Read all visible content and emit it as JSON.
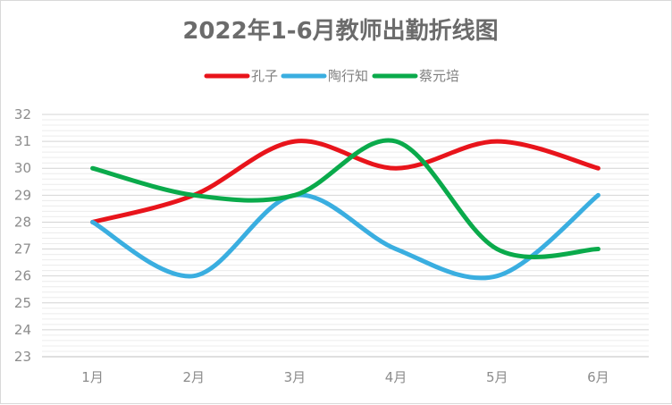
{
  "chart_data": {
    "type": "line",
    "title": "2022年1-6月教师出勤折线图",
    "categories": [
      "1月",
      "2月",
      "3月",
      "4月",
      "5月",
      "6月"
    ],
    "y_ticks": [
      "23",
      "24",
      "25",
      "26",
      "27",
      "28",
      "29",
      "30",
      "31",
      "32"
    ],
    "ylim": [
      23,
      32
    ],
    "grid": true,
    "minor_grid": true,
    "smooth": true,
    "legend_position": "top-center",
    "series": [
      {
        "name": "孔子",
        "values": [
          28,
          29,
          31,
          30,
          31,
          30
        ],
        "color": "#e8141b"
      },
      {
        "name": "陶行知",
        "values": [
          28,
          26,
          29,
          27,
          26,
          29
        ],
        "color": "#3aaee0"
      },
      {
        "name": "蔡元培",
        "values": [
          30,
          29,
          29,
          31,
          27,
          27
        ],
        "color": "#0aaa4b"
      }
    ]
  }
}
